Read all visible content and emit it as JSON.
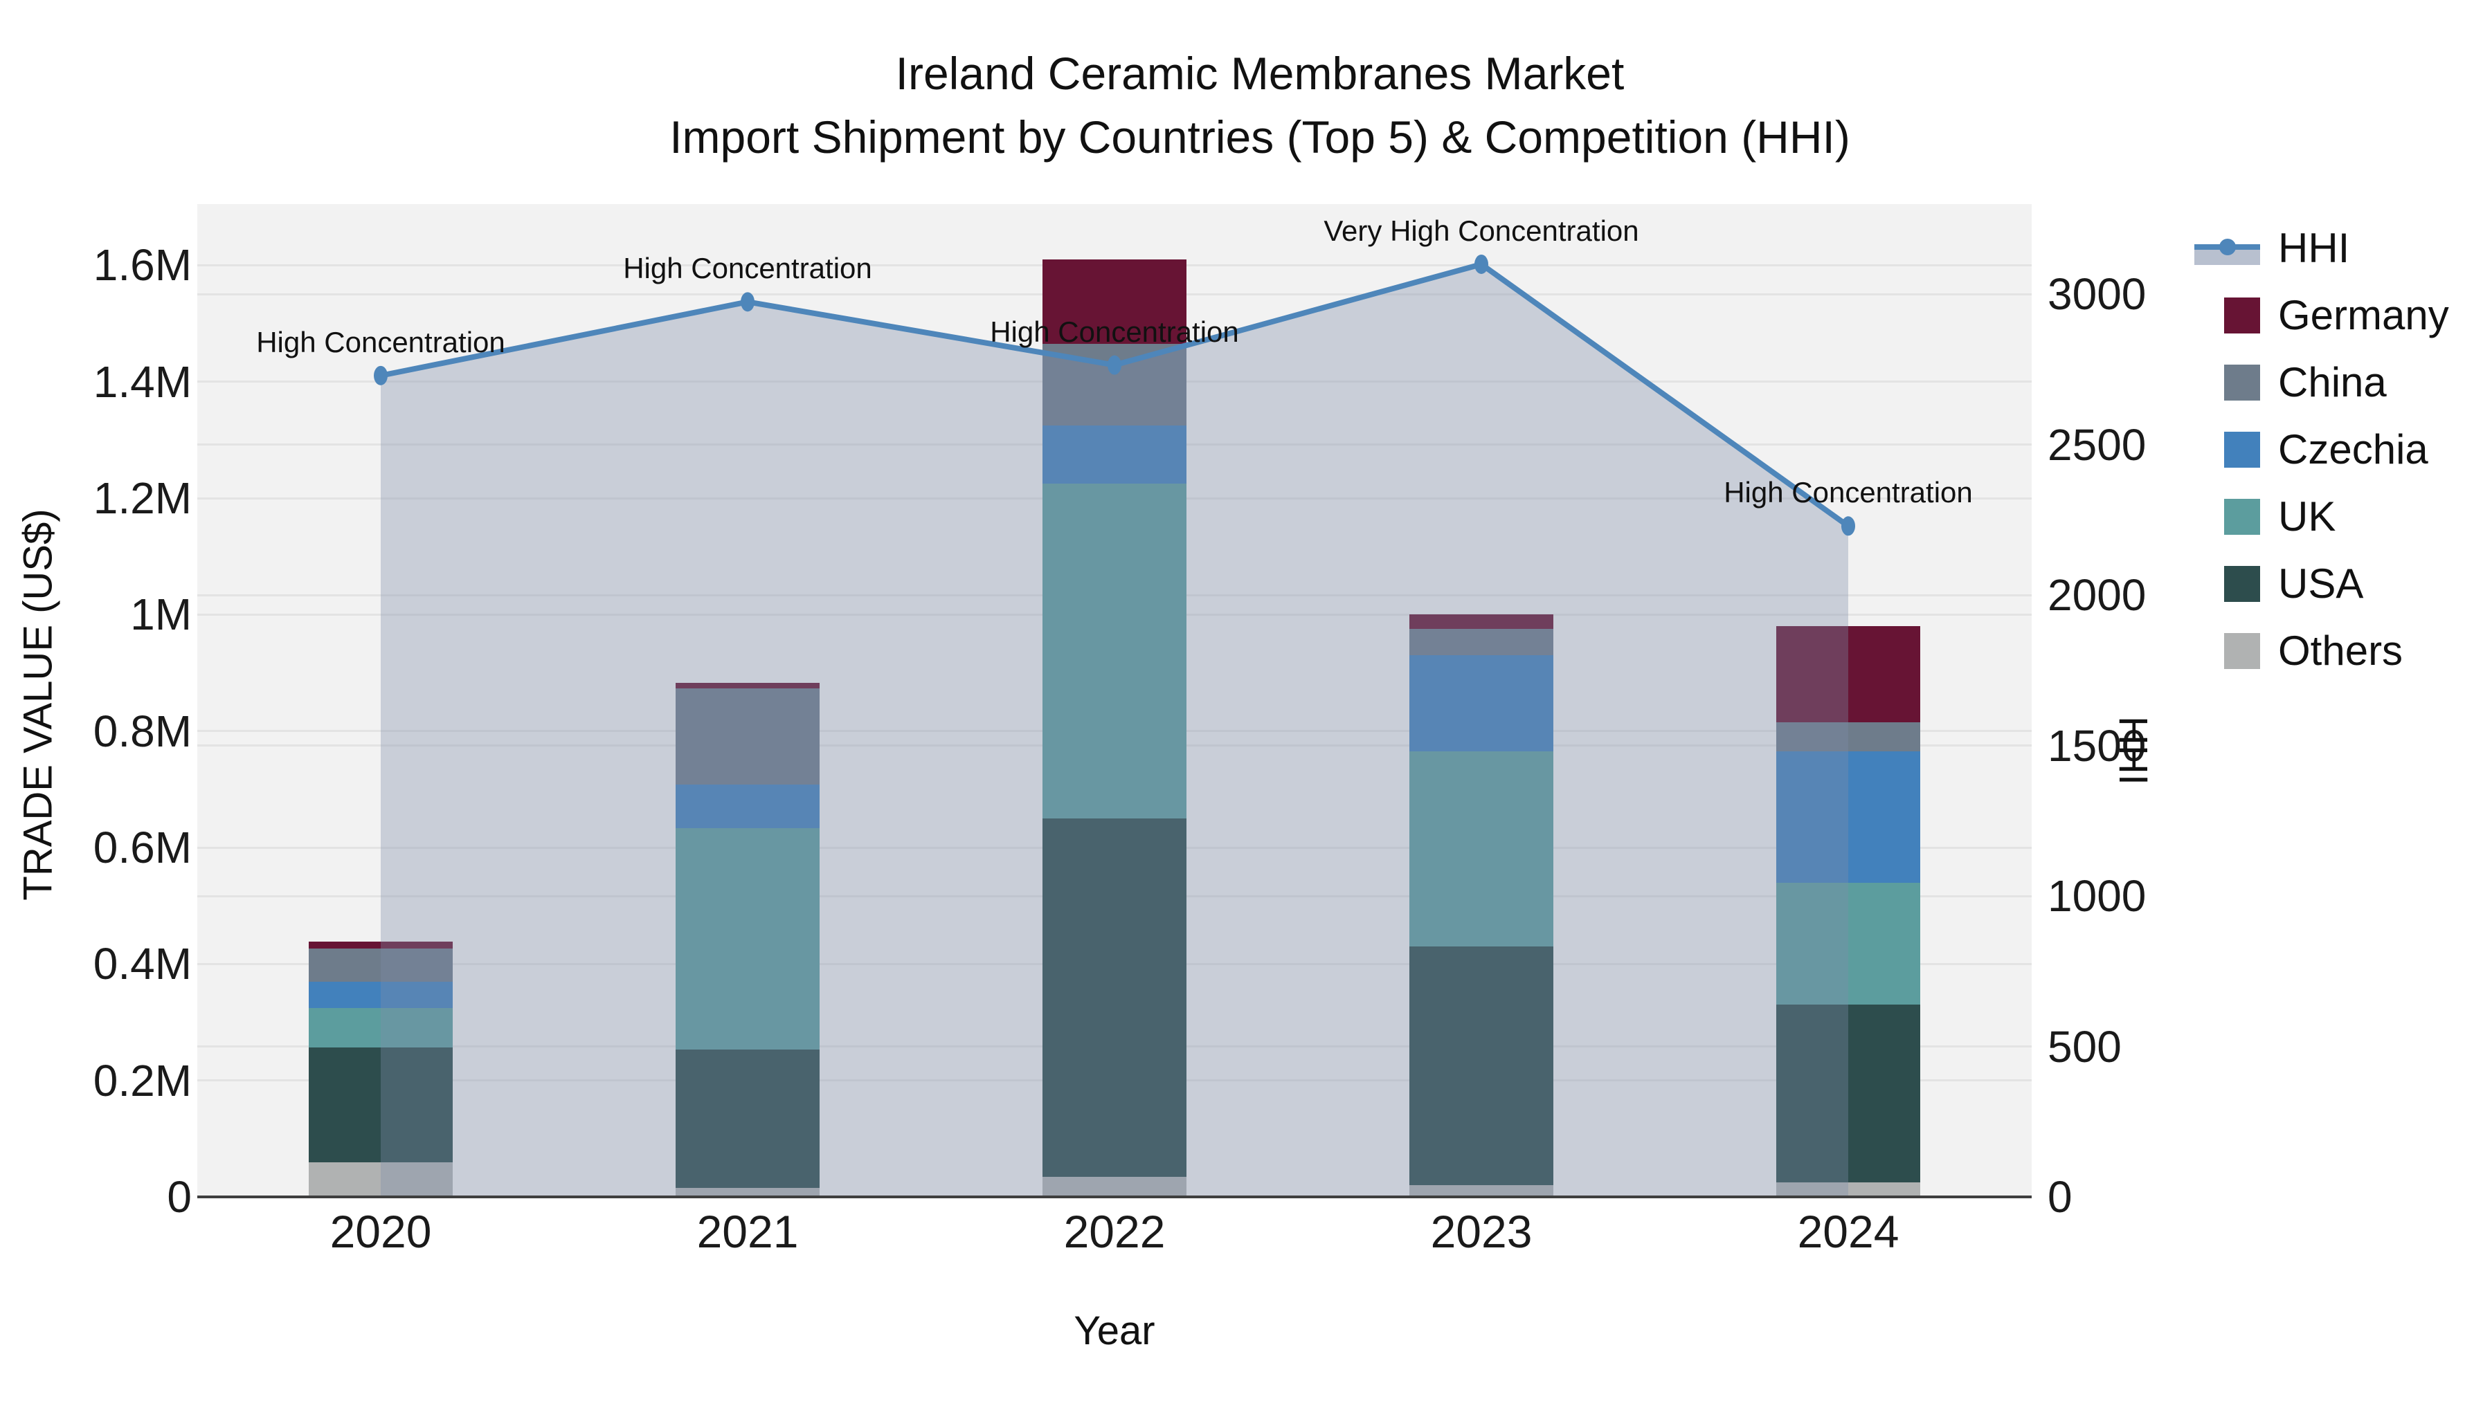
{
  "title": {
    "line1": "Ireland Ceramic Membranes Market",
    "line2": "Import Shipment by Countries (Top 5) & Competition (HHI)"
  },
  "axes": {
    "y_left": {
      "title": "TRADE VALUE (US$)",
      "tick_labels": [
        "0",
        "0.2M",
        "0.4M",
        "0.6M",
        "0.8M",
        "1M",
        "1.2M",
        "1.4M",
        "1.6M"
      ],
      "tick_values": [
        0,
        200000,
        400000,
        600000,
        800000,
        1000000,
        1200000,
        1400000,
        1600000
      ],
      "max": 1705000
    },
    "y_right": {
      "title": "HHI",
      "tick_labels": [
        "0",
        "500",
        "1000",
        "1500",
        "2000",
        "2500",
        "3000"
      ],
      "tick_values": [
        0,
        500,
        1000,
        1500,
        2000,
        2500,
        3000
      ],
      "max": 3300
    },
    "x": {
      "title": "Year",
      "categories": [
        "2020",
        "2021",
        "2022",
        "2023",
        "2024"
      ]
    }
  },
  "legend": {
    "items": [
      {
        "label": "HHI",
        "type": "line"
      },
      {
        "label": "Germany",
        "type": "bar"
      },
      {
        "label": "China",
        "type": "bar"
      },
      {
        "label": "Czechia",
        "type": "bar"
      },
      {
        "label": "UK",
        "type": "bar"
      },
      {
        "label": "USA",
        "type": "bar"
      },
      {
        "label": "Others",
        "type": "bar"
      }
    ]
  },
  "colors": {
    "Germany": "#671434",
    "China": "#6E7C8B",
    "Czechia": "#4281BC",
    "UK": "#5C9D9E",
    "USA": "#2D4D4D",
    "Others": "#B0B2B2",
    "hhi_line": "#4E86BA",
    "hhi_area": "rgba(125,140,168,0.35)",
    "plot_bg": "#f2f2f2",
    "gridline": "#e3e3e3"
  },
  "chart_data": {
    "type": "bar",
    "subtype": "stacked-bars-with-line",
    "title": "Ireland Ceramic Membranes Market — Import Shipment by Countries (Top 5) & Competition (HHI)",
    "xlabel": "Year",
    "ylabel_left": "TRADE VALUE (US$)",
    "ylabel_right": "HHI",
    "ylim_left": [
      0,
      1705000
    ],
    "ylim_right": [
      0,
      3300
    ],
    "grid": true,
    "legend_position": "right",
    "categories": [
      "2020",
      "2021",
      "2022",
      "2023",
      "2024"
    ],
    "series": [
      {
        "name": "Germany",
        "values": [
          11000,
          10000,
          145000,
          25000,
          165000
        ]
      },
      {
        "name": "China",
        "values": [
          57000,
          165000,
          140000,
          45000,
          50000
        ]
      },
      {
        "name": "Czechia",
        "values": [
          46000,
          75000,
          100000,
          165000,
          225000
        ]
      },
      {
        "name": "UK",
        "values": [
          67000,
          380000,
          575000,
          335000,
          210000
        ]
      },
      {
        "name": "USA",
        "values": [
          197000,
          238000,
          615000,
          410000,
          305000
        ]
      },
      {
        "name": "Others",
        "values": [
          60000,
          15000,
          35000,
          20000,
          25000
        ]
      }
    ],
    "bar_totals": [
      438000,
      883000,
      1610000,
      1000000,
      980000
    ],
    "line_series": {
      "name": "HHI",
      "values": [
        2730,
        2975,
        2765,
        3100,
        2230
      ]
    },
    "annotations": [
      "High Concentration",
      "High Concentration",
      "High Concentration",
      "Very High Concentration",
      "High Concentration"
    ]
  }
}
